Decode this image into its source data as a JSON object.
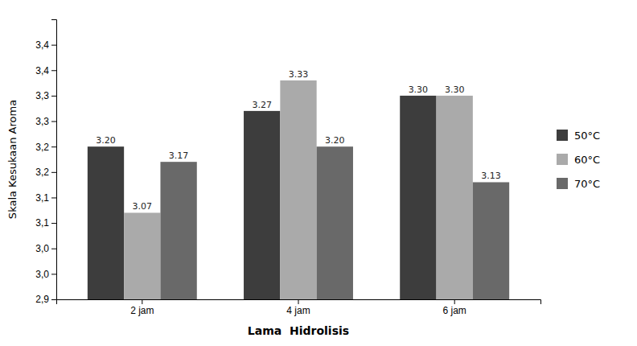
{
  "chart_data": {
    "type": "bar",
    "categories": [
      "2 jam",
      "4 jam",
      "6 jam"
    ],
    "series": [
      {
        "name": "50°C",
        "color": "#3d3d3d",
        "values": [
          3.2,
          3.27,
          3.3
        ],
        "value_labels": [
          "3.20",
          "3.27",
          "3.30"
        ]
      },
      {
        "name": "60°C",
        "color": "#aaaaaa",
        "values": [
          3.07,
          3.33,
          3.3
        ],
        "value_labels": [
          "3.07",
          "3.33",
          "3.30"
        ]
      },
      {
        "name": "70°C",
        "color": "#696969",
        "values": [
          3.17,
          3.2,
          3.13
        ],
        "value_labels": [
          "3.17",
          "3.20",
          "3.13"
        ]
      }
    ],
    "xlabel": "Lama  Hidrolisis",
    "ylabel": "Skala Kesukaan Aroma",
    "ylim": [
      2.9,
      3.45
    ],
    "yticks": [
      {
        "value": 2.9,
        "label": "2,9"
      },
      {
        "value": 2.95,
        "label": "3,0"
      },
      {
        "value": 3.0,
        "label": "3,0"
      },
      {
        "value": 3.05,
        "label": "3,1"
      },
      {
        "value": 3.1,
        "label": "3,1"
      },
      {
        "value": 3.15,
        "label": "3,2"
      },
      {
        "value": 3.2,
        "label": "3,2"
      },
      {
        "value": 3.25,
        "label": "3,3"
      },
      {
        "value": 3.3,
        "label": "3,3"
      },
      {
        "value": 3.35,
        "label": "3,4"
      },
      {
        "value": 3.4,
        "label": "3,4"
      }
    ],
    "grid": false,
    "legend": "right",
    "data_labels": true
  }
}
